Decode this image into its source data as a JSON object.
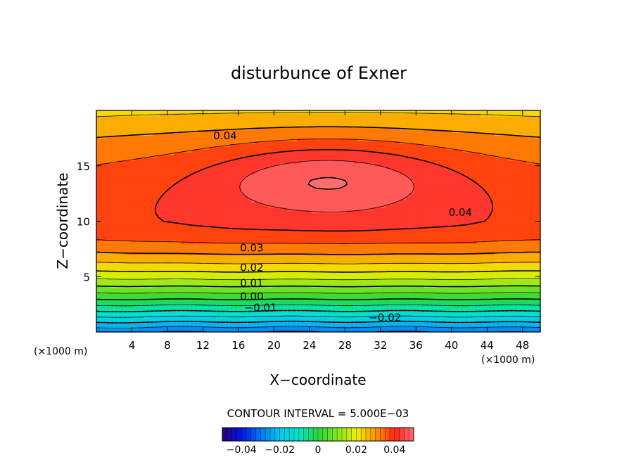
{
  "chart_data": {
    "type": "heatmap",
    "title": "disturbunce of Exner",
    "xlabel": "X−coordinate",
    "ylabel": "Z−coordinate",
    "x_unit": "(×1000 m)",
    "z_unit": "(×1000 m)",
    "xlim": [
      0,
      50
    ],
    "ylim": [
      0,
      20
    ],
    "x_ticks": [
      4,
      8,
      12,
      16,
      20,
      24,
      28,
      32,
      36,
      40,
      44,
      48
    ],
    "y_ticks": [
      5,
      10,
      15
    ],
    "contour_interval_text": "CONTOUR INTERVAL = 5.000E−03",
    "contour_interval": 0.005,
    "value_range": [
      -0.05,
      0.05
    ],
    "negative_contours": "dashed",
    "contour_labels": [
      {
        "text": "0.04",
        "x": 14.5,
        "z": 17.7
      },
      {
        "text": "0.04",
        "x": 41.0,
        "z": 10.8
      },
      {
        "text": "0.03",
        "x": 17.5,
        "z": 7.6
      },
      {
        "text": "0.02",
        "x": 17.5,
        "z": 5.8
      },
      {
        "text": "0.01",
        "x": 17.5,
        "z": 4.4
      },
      {
        "text": "0.00",
        "x": 17.5,
        "z": 3.2
      },
      {
        "text": "−0.01",
        "x": 18.5,
        "z": 2.2
      },
      {
        "text": "−0.02",
        "x": 32.5,
        "z": 1.3
      }
    ],
    "colorbar": {
      "ticks": [
        {
          "label": "−0.04",
          "value": -0.04
        },
        {
          "label": "−0.02",
          "value": -0.02
        },
        {
          "label": "0",
          "value": 0
        },
        {
          "label": "0.02",
          "value": 0.02
        },
        {
          "label": "0.04",
          "value": 0.04
        }
      ]
    }
  }
}
